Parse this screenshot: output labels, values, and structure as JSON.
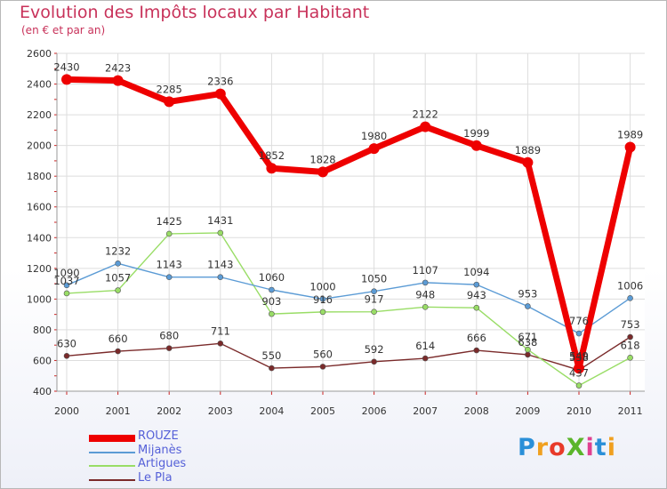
{
  "header": {
    "title": "Evolution des Impôts locaux par Habitant",
    "subtitle": "(en € et par an)"
  },
  "logo": {
    "text": "ProXiti",
    "colors": [
      "#2a8fd8",
      "#f0a020",
      "#e83a2a",
      "#5ab52a",
      "#e04090",
      "#2a8fd8",
      "#f0a020"
    ]
  },
  "chart_data": {
    "type": "line",
    "title": "Evolution des Impôts locaux par Habitant",
    "subtitle": "(en € et par an)",
    "xlabel": "",
    "ylabel": "",
    "categories": [
      "2000",
      "2001",
      "2002",
      "2003",
      "2004",
      "2005",
      "2006",
      "2007",
      "2008",
      "2009",
      "2010",
      "2011"
    ],
    "ylim": [
      400,
      2600
    ],
    "yticks": [
      400,
      600,
      800,
      1000,
      1200,
      1400,
      1600,
      1800,
      2000,
      2200,
      2400,
      2600
    ],
    "grid": true,
    "legend": "bottom-left",
    "series": [
      {
        "name": "ROUZE",
        "color": "#ee0000",
        "width": 7,
        "values": [
          2430,
          2423,
          2285,
          2336,
          1852,
          1828,
          1980,
          2122,
          1999,
          1889,
          549,
          1989
        ]
      },
      {
        "name": "Mijanès",
        "color": "#5b9bd5",
        "width": 1.4,
        "values": [
          1090,
          1232,
          1143,
          1143,
          1060,
          1000,
          1050,
          1107,
          1094,
          953,
          776,
          1006
        ]
      },
      {
        "name": "Artigues",
        "color": "#99dd66",
        "width": 1.4,
        "values": [
          1037,
          1057,
          1425,
          1431,
          903,
          916,
          917,
          948,
          943,
          671,
          437,
          618
        ]
      },
      {
        "name": "Le Pla",
        "color": "#7a2a2a",
        "width": 1.4,
        "values": [
          630,
          660,
          680,
          711,
          550,
          560,
          592,
          614,
          666,
          638,
          538,
          753
        ]
      }
    ]
  }
}
